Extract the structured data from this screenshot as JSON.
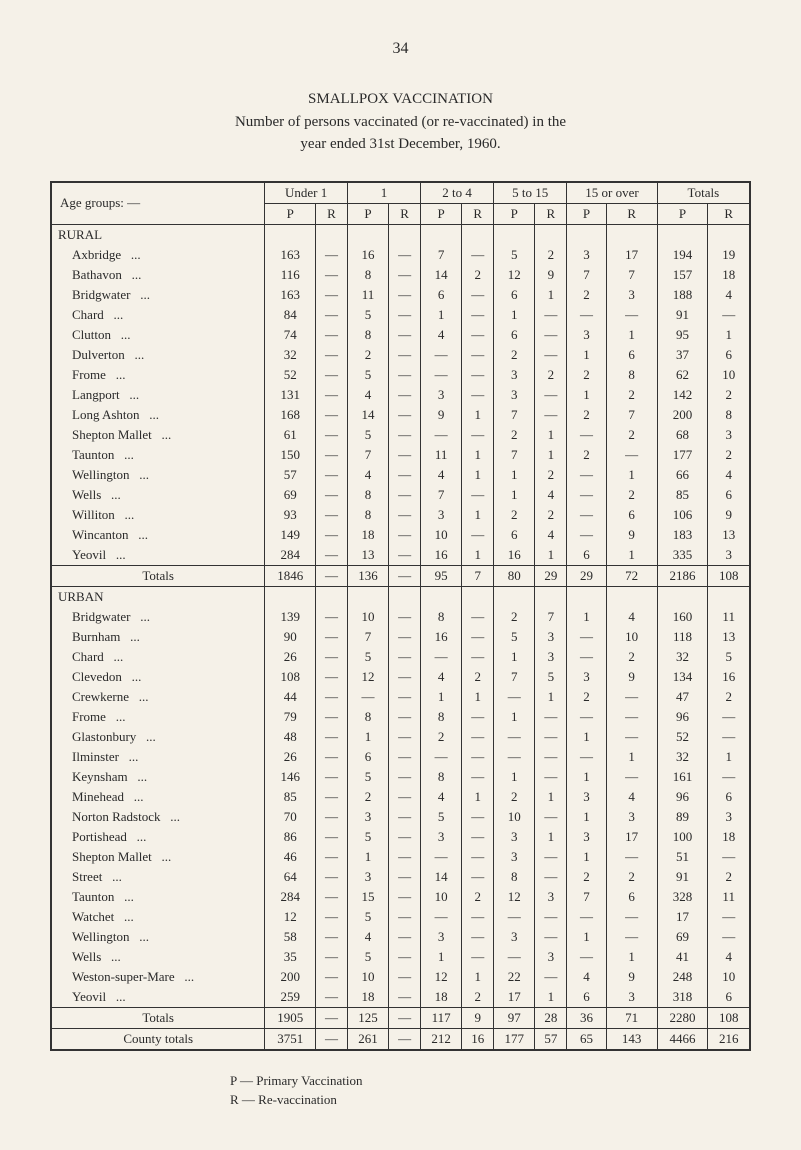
{
  "pageNumber": "34",
  "title": {
    "line1": "SMALLPOX VACCINATION",
    "line2": "Number of persons vaccinated (or re-vaccinated) in the",
    "line3": "year ended 31st December, 1960."
  },
  "headers": {
    "ageGroups": "Age groups: —",
    "under1": "Under 1",
    "one": "1",
    "twoTo4": "2 to 4",
    "fiveTo15": "5 to 15",
    "fifteenOver": "15 or over",
    "totals": "Totals",
    "P": "P",
    "R": "R"
  },
  "sections": {
    "rural": "RURAL",
    "urban": "URBAN"
  },
  "ruralRows": [
    {
      "name": "Axbridge",
      "u1p": "163",
      "u1r": "—",
      "p1": "16",
      "r1": "—",
      "p2": "7",
      "r2": "—",
      "p5": "5",
      "r5": "2",
      "p15": "3",
      "r15": "17",
      "tp": "194",
      "tr": "19"
    },
    {
      "name": "Bathavon",
      "u1p": "116",
      "u1r": "—",
      "p1": "8",
      "r1": "—",
      "p2": "14",
      "r2": "2",
      "p5": "12",
      "r5": "9",
      "p15": "7",
      "r15": "7",
      "tp": "157",
      "tr": "18"
    },
    {
      "name": "Bridgwater",
      "u1p": "163",
      "u1r": "—",
      "p1": "11",
      "r1": "—",
      "p2": "6",
      "r2": "—",
      "p5": "6",
      "r5": "1",
      "p15": "2",
      "r15": "3",
      "tp": "188",
      "tr": "4"
    },
    {
      "name": "Chard",
      "u1p": "84",
      "u1r": "—",
      "p1": "5",
      "r1": "—",
      "p2": "1",
      "r2": "—",
      "p5": "1",
      "r5": "—",
      "p15": "—",
      "r15": "—",
      "tp": "91",
      "tr": "—"
    },
    {
      "name": "Clutton",
      "u1p": "74",
      "u1r": "—",
      "p1": "8",
      "r1": "—",
      "p2": "4",
      "r2": "—",
      "p5": "6",
      "r5": "—",
      "p15": "3",
      "r15": "1",
      "tp": "95",
      "tr": "1"
    },
    {
      "name": "Dulverton",
      "u1p": "32",
      "u1r": "—",
      "p1": "2",
      "r1": "—",
      "p2": "—",
      "r2": "—",
      "p5": "2",
      "r5": "—",
      "p15": "1",
      "r15": "6",
      "tp": "37",
      "tr": "6"
    },
    {
      "name": "Frome",
      "u1p": "52",
      "u1r": "—",
      "p1": "5",
      "r1": "—",
      "p2": "—",
      "r2": "—",
      "p5": "3",
      "r5": "2",
      "p15": "2",
      "r15": "8",
      "tp": "62",
      "tr": "10"
    },
    {
      "name": "Langport",
      "u1p": "131",
      "u1r": "—",
      "p1": "4",
      "r1": "—",
      "p2": "3",
      "r2": "—",
      "p5": "3",
      "r5": "—",
      "p15": "1",
      "r15": "2",
      "tp": "142",
      "tr": "2"
    },
    {
      "name": "Long Ashton",
      "u1p": "168",
      "u1r": "—",
      "p1": "14",
      "r1": "—",
      "p2": "9",
      "r2": "1",
      "p5": "7",
      "r5": "—",
      "p15": "2",
      "r15": "7",
      "tp": "200",
      "tr": "8"
    },
    {
      "name": "Shepton Mallet",
      "u1p": "61",
      "u1r": "—",
      "p1": "5",
      "r1": "—",
      "p2": "—",
      "r2": "—",
      "p5": "2",
      "r5": "1",
      "p15": "—",
      "r15": "2",
      "tp": "68",
      "tr": "3"
    },
    {
      "name": "Taunton",
      "u1p": "150",
      "u1r": "—",
      "p1": "7",
      "r1": "—",
      "p2": "11",
      "r2": "1",
      "p5": "7",
      "r5": "1",
      "p15": "2",
      "r15": "—",
      "tp": "177",
      "tr": "2"
    },
    {
      "name": "Wellington",
      "u1p": "57",
      "u1r": "—",
      "p1": "4",
      "r1": "—",
      "p2": "4",
      "r2": "1",
      "p5": "1",
      "r5": "2",
      "p15": "—",
      "r15": "1",
      "tp": "66",
      "tr": "4"
    },
    {
      "name": "Wells",
      "u1p": "69",
      "u1r": "—",
      "p1": "8",
      "r1": "—",
      "p2": "7",
      "r2": "—",
      "p5": "1",
      "r5": "4",
      "p15": "—",
      "r15": "2",
      "tp": "85",
      "tr": "6"
    },
    {
      "name": "Williton",
      "u1p": "93",
      "u1r": "—",
      "p1": "8",
      "r1": "—",
      "p2": "3",
      "r2": "1",
      "p5": "2",
      "r5": "2",
      "p15": "—",
      "r15": "6",
      "tp": "106",
      "tr": "9"
    },
    {
      "name": "Wincanton",
      "u1p": "149",
      "u1r": "—",
      "p1": "18",
      "r1": "—",
      "p2": "10",
      "r2": "—",
      "p5": "6",
      "r5": "4",
      "p15": "—",
      "r15": "9",
      "tp": "183",
      "tr": "13"
    },
    {
      "name": "Yeovil",
      "u1p": "284",
      "u1r": "—",
      "p1": "13",
      "r1": "—",
      "p2": "16",
      "r2": "1",
      "p5": "16",
      "r5": "1",
      "p15": "6",
      "r15": "1",
      "tp": "335",
      "tr": "3"
    }
  ],
  "ruralTotals": {
    "name": "Totals",
    "u1p": "1846",
    "u1r": "—",
    "p1": "136",
    "r1": "—",
    "p2": "95",
    "r2": "7",
    "p5": "80",
    "r5": "29",
    "p15": "29",
    "r15": "72",
    "tp": "2186",
    "tr": "108"
  },
  "urbanRows": [
    {
      "name": "Bridgwater",
      "u1p": "139",
      "u1r": "—",
      "p1": "10",
      "r1": "—",
      "p2": "8",
      "r2": "—",
      "p5": "2",
      "r5": "7",
      "p15": "1",
      "r15": "4",
      "tp": "160",
      "tr": "11"
    },
    {
      "name": "Burnham",
      "u1p": "90",
      "u1r": "—",
      "p1": "7",
      "r1": "—",
      "p2": "16",
      "r2": "—",
      "p5": "5",
      "r5": "3",
      "p15": "—",
      "r15": "10",
      "tp": "118",
      "tr": "13"
    },
    {
      "name": "Chard",
      "u1p": "26",
      "u1r": "—",
      "p1": "5",
      "r1": "—",
      "p2": "—",
      "r2": "—",
      "p5": "1",
      "r5": "3",
      "p15": "—",
      "r15": "2",
      "tp": "32",
      "tr": "5"
    },
    {
      "name": "Clevedon",
      "u1p": "108",
      "u1r": "—",
      "p1": "12",
      "r1": "—",
      "p2": "4",
      "r2": "2",
      "p5": "7",
      "r5": "5",
      "p15": "3",
      "r15": "9",
      "tp": "134",
      "tr": "16"
    },
    {
      "name": "Crewkerne",
      "u1p": "44",
      "u1r": "—",
      "p1": "—",
      "r1": "—",
      "p2": "1",
      "r2": "1",
      "p5": "—",
      "r5": "1",
      "p15": "2",
      "r15": "—",
      "tp": "47",
      "tr": "2"
    },
    {
      "name": "Frome",
      "u1p": "79",
      "u1r": "—",
      "p1": "8",
      "r1": "—",
      "p2": "8",
      "r2": "—",
      "p5": "1",
      "r5": "—",
      "p15": "—",
      "r15": "—",
      "tp": "96",
      "tr": "—"
    },
    {
      "name": "Glastonbury",
      "u1p": "48",
      "u1r": "—",
      "p1": "1",
      "r1": "—",
      "p2": "2",
      "r2": "—",
      "p5": "—",
      "r5": "—",
      "p15": "1",
      "r15": "—",
      "tp": "52",
      "tr": "—"
    },
    {
      "name": "Ilminster",
      "u1p": "26",
      "u1r": "—",
      "p1": "6",
      "r1": "—",
      "p2": "—",
      "r2": "—",
      "p5": "—",
      "r5": "—",
      "p15": "—",
      "r15": "1",
      "tp": "32",
      "tr": "1"
    },
    {
      "name": "Keynsham",
      "u1p": "146",
      "u1r": "—",
      "p1": "5",
      "r1": "—",
      "p2": "8",
      "r2": "—",
      "p5": "1",
      "r5": "—",
      "p15": "1",
      "r15": "—",
      "tp": "161",
      "tr": "—"
    },
    {
      "name": "Minehead",
      "u1p": "85",
      "u1r": "—",
      "p1": "2",
      "r1": "—",
      "p2": "4",
      "r2": "1",
      "p5": "2",
      "r5": "1",
      "p15": "3",
      "r15": "4",
      "tp": "96",
      "tr": "6"
    },
    {
      "name": "Norton Radstock",
      "u1p": "70",
      "u1r": "—",
      "p1": "3",
      "r1": "—",
      "p2": "5",
      "r2": "—",
      "p5": "10",
      "r5": "—",
      "p15": "1",
      "r15": "3",
      "tp": "89",
      "tr": "3"
    },
    {
      "name": "Portishead",
      "u1p": "86",
      "u1r": "—",
      "p1": "5",
      "r1": "—",
      "p2": "3",
      "r2": "—",
      "p5": "3",
      "r5": "1",
      "p15": "3",
      "r15": "17",
      "tp": "100",
      "tr": "18"
    },
    {
      "name": "Shepton Mallet",
      "u1p": "46",
      "u1r": "—",
      "p1": "1",
      "r1": "—",
      "p2": "—",
      "r2": "—",
      "p5": "3",
      "r5": "—",
      "p15": "1",
      "r15": "—",
      "tp": "51",
      "tr": "—"
    },
    {
      "name": "Street",
      "u1p": "64",
      "u1r": "—",
      "p1": "3",
      "r1": "—",
      "p2": "14",
      "r2": "—",
      "p5": "8",
      "r5": "—",
      "p15": "2",
      "r15": "2",
      "tp": "91",
      "tr": "2"
    },
    {
      "name": "Taunton",
      "u1p": "284",
      "u1r": "—",
      "p1": "15",
      "r1": "—",
      "p2": "10",
      "r2": "2",
      "p5": "12",
      "r5": "3",
      "p15": "7",
      "r15": "6",
      "tp": "328",
      "tr": "11"
    },
    {
      "name": "Watchet",
      "u1p": "12",
      "u1r": "—",
      "p1": "5",
      "r1": "—",
      "p2": "—",
      "r2": "—",
      "p5": "—",
      "r5": "—",
      "p15": "—",
      "r15": "—",
      "tp": "17",
      "tr": "—"
    },
    {
      "name": "Wellington",
      "u1p": "58",
      "u1r": "—",
      "p1": "4",
      "r1": "—",
      "p2": "3",
      "r2": "—",
      "p5": "3",
      "r5": "—",
      "p15": "1",
      "r15": "—",
      "tp": "69",
      "tr": "—"
    },
    {
      "name": "Wells",
      "u1p": "35",
      "u1r": "—",
      "p1": "5",
      "r1": "—",
      "p2": "1",
      "r2": "—",
      "p5": "—",
      "r5": "3",
      "p15": "—",
      "r15": "1",
      "tp": "41",
      "tr": "4"
    },
    {
      "name": "Weston-super-Mare",
      "u1p": "200",
      "u1r": "—",
      "p1": "10",
      "r1": "—",
      "p2": "12",
      "r2": "1",
      "p5": "22",
      "r5": "—",
      "p15": "4",
      "r15": "9",
      "tp": "248",
      "tr": "10"
    },
    {
      "name": "Yeovil",
      "u1p": "259",
      "u1r": "—",
      "p1": "18",
      "r1": "—",
      "p2": "18",
      "r2": "2",
      "p5": "17",
      "r5": "1",
      "p15": "6",
      "r15": "3",
      "tp": "318",
      "tr": "6"
    }
  ],
  "urbanTotals": {
    "name": "Totals",
    "u1p": "1905",
    "u1r": "—",
    "p1": "125",
    "r1": "—",
    "p2": "117",
    "r2": "9",
    "p5": "97",
    "r5": "28",
    "p15": "36",
    "r15": "71",
    "tp": "2280",
    "tr": "108"
  },
  "countyTotals": {
    "name": "County totals",
    "u1p": "3751",
    "u1r": "—",
    "p1": "261",
    "r1": "—",
    "p2": "212",
    "r2": "16",
    "p5": "177",
    "r5": "57",
    "p15": "65",
    "r15": "143",
    "tp": "4466",
    "tr": "216"
  },
  "footer": {
    "p": "P  —   Primary Vaccination",
    "r": "R  —   Re-vaccination"
  }
}
